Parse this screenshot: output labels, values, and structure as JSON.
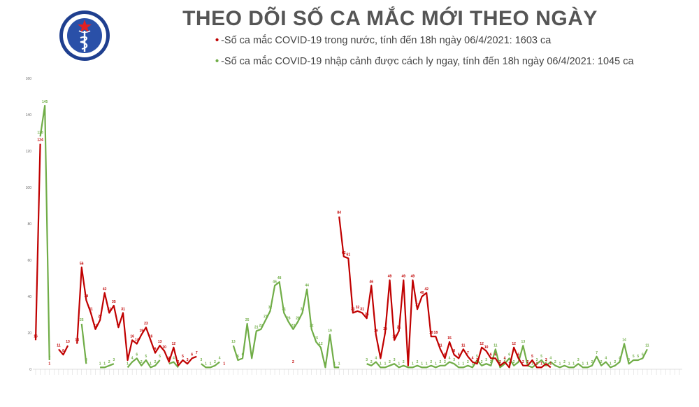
{
  "header": {
    "title": "THEO DÕI SỐ CA MẮC MỚI THEO NGÀY",
    "logo_top_text": "BỘ Y TẾ",
    "logo_bottom_text": "MINISTRY OF HEALTH"
  },
  "legend": [
    {
      "text": "-Số ca mắc COVID-19 trong nước, tính đến 18h ngày 06/4/2021: 1603 ca",
      "color": "#c00000"
    },
    {
      "text": "-Số ca mắc COVID-19 nhập cảnh được cách ly ngay, tính đến 18h ngày 06/4/2021: 1045 ca",
      "color": "#70ad47"
    }
  ],
  "chart_data": {
    "type": "line",
    "ylim": [
      0,
      160
    ],
    "yticks": [
      0,
      20,
      40,
      60,
      80,
      100,
      120,
      140,
      160
    ],
    "grid": false,
    "legend_position": "top",
    "x_count": 141,
    "series": [
      {
        "name": "-Số ca mắc COVID-19 trong nước, tính đến 18h ngày 06/4/2021: 1603 ca",
        "color": "#c00000",
        "points": [
          [
            0,
            16
          ],
          [
            1,
            124
          ],
          [
            3,
            1
          ],
          [
            5,
            11
          ],
          [
            6,
            8
          ],
          [
            7,
            13
          ],
          [
            9,
            14
          ],
          [
            10,
            56
          ],
          [
            11,
            38
          ],
          [
            12,
            31
          ],
          [
            13,
            22
          ],
          [
            14,
            27
          ],
          [
            15,
            42
          ],
          [
            16,
            31
          ],
          [
            17,
            35
          ],
          [
            18,
            23
          ],
          [
            19,
            31
          ],
          [
            20,
            5
          ],
          [
            21,
            16
          ],
          [
            22,
            14
          ],
          [
            23,
            19
          ],
          [
            24,
            23
          ],
          [
            25,
            16
          ],
          [
            26,
            9
          ],
          [
            27,
            13
          ],
          [
            28,
            10
          ],
          [
            29,
            4
          ],
          [
            30,
            12
          ],
          [
            31,
            2
          ],
          [
            32,
            5
          ],
          [
            33,
            3
          ],
          [
            34,
            6
          ],
          [
            35,
            7
          ],
          [
            41,
            1
          ],
          [
            56,
            2
          ],
          [
            66,
            84
          ],
          [
            67,
            62
          ],
          [
            68,
            61
          ],
          [
            69,
            31
          ],
          [
            70,
            32
          ],
          [
            71,
            31
          ],
          [
            72,
            28
          ],
          [
            73,
            46
          ],
          [
            74,
            19
          ],
          [
            75,
            6
          ],
          [
            76,
            20
          ],
          [
            77,
            49
          ],
          [
            78,
            16
          ],
          [
            79,
            21
          ],
          [
            80,
            49
          ],
          [
            81,
            2
          ],
          [
            82,
            49
          ],
          [
            83,
            33
          ],
          [
            84,
            40
          ],
          [
            85,
            42
          ],
          [
            86,
            18
          ],
          [
            87,
            18
          ],
          [
            88,
            11
          ],
          [
            89,
            6
          ],
          [
            90,
            15
          ],
          [
            91,
            8
          ],
          [
            92,
            6
          ],
          [
            93,
            11
          ],
          [
            94,
            7
          ],
          [
            95,
            4
          ],
          [
            96,
            3
          ],
          [
            97,
            12
          ],
          [
            98,
            10
          ],
          [
            99,
            6
          ],
          [
            100,
            6
          ],
          [
            101,
            2
          ],
          [
            102,
            4
          ],
          [
            103,
            1
          ],
          [
            104,
            12
          ],
          [
            105,
            6
          ],
          [
            106,
            2
          ],
          [
            107,
            2
          ],
          [
            108,
            5
          ],
          [
            109,
            1
          ],
          [
            110,
            1
          ],
          [
            111,
            3
          ],
          [
            112,
            1
          ]
        ]
      },
      {
        "name": "-Số ca mắc COVID-19 nhập cảnh được cách ly ngay, tính đến 18h ngày 06/4/2021: 1045 ca",
        "color": "#70ad47",
        "points": [
          [
            1,
            128
          ],
          [
            2,
            145
          ],
          [
            3,
            5
          ],
          [
            10,
            25
          ],
          [
            11,
            3
          ],
          [
            14,
            1
          ],
          [
            15,
            1
          ],
          [
            16,
            2
          ],
          [
            17,
            3
          ],
          [
            20,
            1
          ],
          [
            21,
            4
          ],
          [
            22,
            6
          ],
          [
            23,
            2
          ],
          [
            24,
            5
          ],
          [
            25,
            1
          ],
          [
            26,
            2
          ],
          [
            27,
            5
          ],
          [
            29,
            3
          ],
          [
            30,
            4
          ],
          [
            31,
            1
          ],
          [
            36,
            3
          ],
          [
            37,
            1
          ],
          [
            38,
            1
          ],
          [
            39,
            2
          ],
          [
            40,
            4
          ],
          [
            43,
            13
          ],
          [
            44,
            5
          ],
          [
            45,
            6
          ],
          [
            46,
            25
          ],
          [
            47,
            6
          ],
          [
            48,
            21
          ],
          [
            49,
            22
          ],
          [
            50,
            27
          ],
          [
            51,
            32
          ],
          [
            52,
            46
          ],
          [
            53,
            48
          ],
          [
            54,
            31
          ],
          [
            55,
            26
          ],
          [
            56,
            22
          ],
          [
            57,
            26
          ],
          [
            58,
            31
          ],
          [
            59,
            44
          ],
          [
            60,
            22
          ],
          [
            61,
            15
          ],
          [
            62,
            12
          ],
          [
            63,
            1
          ],
          [
            64,
            19
          ],
          [
            65,
            1
          ],
          [
            66,
            1
          ],
          [
            72,
            3
          ],
          [
            73,
            2
          ],
          [
            74,
            4
          ],
          [
            75,
            1
          ],
          [
            76,
            1
          ],
          [
            77,
            2
          ],
          [
            78,
            3
          ],
          [
            79,
            1
          ],
          [
            80,
            2
          ],
          [
            81,
            1
          ],
          [
            82,
            1
          ],
          [
            83,
            2
          ],
          [
            84,
            1
          ],
          [
            85,
            1
          ],
          [
            86,
            2
          ],
          [
            87,
            1
          ],
          [
            88,
            2
          ],
          [
            89,
            2
          ],
          [
            90,
            4
          ],
          [
            91,
            3
          ],
          [
            92,
            1
          ],
          [
            93,
            1
          ],
          [
            94,
            2
          ],
          [
            95,
            1
          ],
          [
            96,
            5
          ],
          [
            97,
            2
          ],
          [
            98,
            3
          ],
          [
            99,
            2
          ],
          [
            100,
            11
          ],
          [
            101,
            1
          ],
          [
            102,
            3
          ],
          [
            103,
            6
          ],
          [
            104,
            2
          ],
          [
            105,
            4
          ],
          [
            106,
            13
          ],
          [
            107,
            2
          ],
          [
            108,
            1
          ],
          [
            109,
            3
          ],
          [
            110,
            5
          ],
          [
            111,
            2
          ],
          [
            112,
            4
          ],
          [
            113,
            2
          ],
          [
            114,
            1
          ],
          [
            115,
            2
          ],
          [
            116,
            1
          ],
          [
            117,
            1
          ],
          [
            118,
            3
          ],
          [
            119,
            1
          ],
          [
            120,
            1
          ],
          [
            121,
            2
          ],
          [
            122,
            7
          ],
          [
            123,
            2
          ],
          [
            124,
            4
          ],
          [
            125,
            1
          ],
          [
            126,
            2
          ],
          [
            127,
            4
          ],
          [
            128,
            14
          ],
          [
            129,
            3
          ],
          [
            130,
            5
          ],
          [
            131,
            5
          ],
          [
            132,
            6
          ],
          [
            133,
            11
          ]
        ]
      }
    ]
  }
}
